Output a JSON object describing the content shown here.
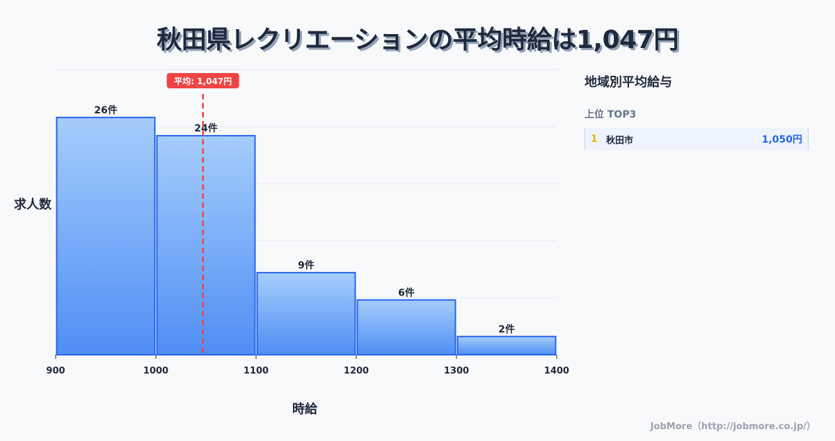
{
  "title": "秋田県レクリエーションの平均時給は1,047円",
  "chart_data": {
    "type": "bar",
    "subtype": "histogram",
    "title": "秋田県レクリエーションの平均時給は1,047円",
    "xlabel": "時給",
    "ylabel": "求人数",
    "bins": [
      [
        900,
        1000
      ],
      [
        1000,
        1100
      ],
      [
        1100,
        1200
      ],
      [
        1200,
        1300
      ],
      [
        1300,
        1400
      ]
    ],
    "categories": [
      "900-1000",
      "1000-1100",
      "1100-1200",
      "1200-1300",
      "1300-1400"
    ],
    "values": [
      26,
      24,
      9,
      6,
      2
    ],
    "value_labels": [
      "26件",
      "24件",
      "9件",
      "6件",
      "2件"
    ],
    "x_ticks": [
      "900",
      "1000",
      "1100",
      "1200",
      "1300",
      "1400"
    ],
    "xlim": [
      900,
      1400
    ],
    "ylim": [
      0,
      31.25
    ],
    "grid": true,
    "mean_line": {
      "value": 1047,
      "label": "平均: 1,047円",
      "color": "#ef4444"
    },
    "bar_color_top": "#a5cdfb",
    "bar_color_bottom": "#4f8ef5",
    "bar_border": "#2563eb"
  },
  "sidebar": {
    "title": "地域別平均給与",
    "subtitle": "上位 TOP3",
    "items": [
      {
        "rank": "1",
        "name": "秋田市",
        "value": "1,050円"
      }
    ]
  },
  "credit": "JobMore（http://jobmore.co.jp/）"
}
